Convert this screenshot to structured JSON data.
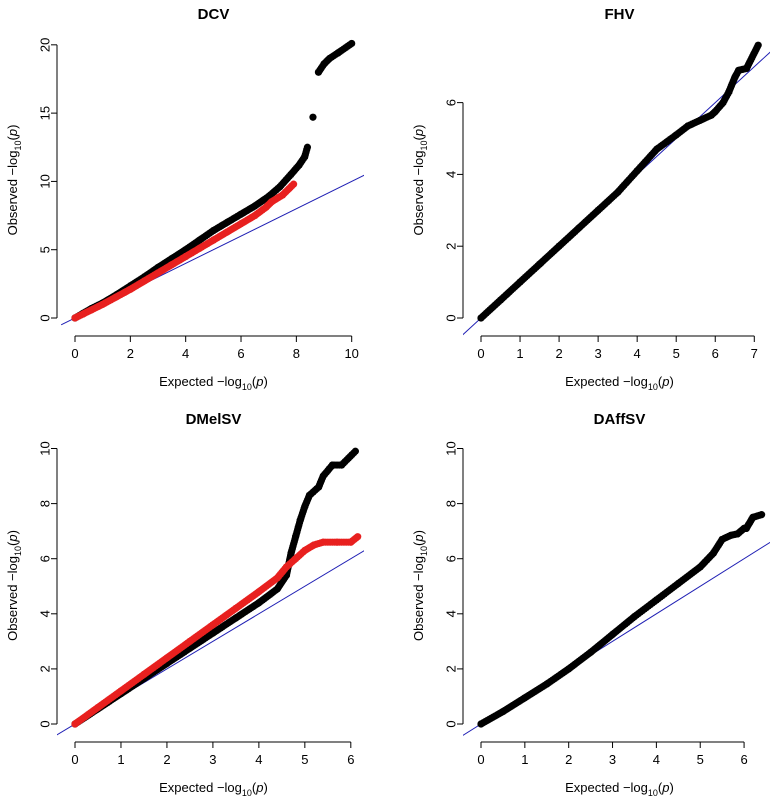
{
  "chart_data": [
    {
      "type": "scatter",
      "title": "DCV",
      "xlabel": "Expected  −log10(p)",
      "ylabel": "Observed  −log10(p)",
      "xlim": [
        0,
        10.3
      ],
      "ylim": [
        0,
        20.5
      ],
      "xticks": [
        0,
        2,
        4,
        6,
        8,
        10
      ],
      "yticks": [
        0,
        5,
        10,
        15,
        20
      ],
      "reference_line": {
        "slope": 1,
        "intercept": 0,
        "color": "#1f1fb4"
      },
      "series": [
        {
          "color": "#000000",
          "points": [
            [
              0,
              0
            ],
            [
              0.3,
              0.35
            ],
            [
              0.6,
              0.7
            ],
            [
              1,
              1.1
            ],
            [
              1.5,
              1.7
            ],
            [
              2,
              2.35
            ],
            [
              2.5,
              3.0
            ],
            [
              3,
              3.7
            ],
            [
              3.5,
              4.35
            ],
            [
              4,
              5.0
            ],
            [
              4.5,
              5.7
            ],
            [
              5,
              6.4
            ],
            [
              5.5,
              7.0
            ],
            [
              6,
              7.6
            ],
            [
              6.5,
              8.2
            ],
            [
              7,
              8.9
            ],
            [
              7.4,
              9.6
            ],
            [
              7.8,
              10.5
            ],
            [
              8.1,
              11.2
            ],
            [
              8.3,
              11.8
            ],
            [
              8.4,
              12.5
            ],
            [
              8.6,
              14.7
            ],
            [
              8.8,
              18.0
            ],
            [
              9.0,
              18.6
            ],
            [
              9.2,
              19.0
            ],
            [
              9.5,
              19.4
            ],
            [
              10,
              20.1
            ]
          ]
        },
        {
          "color": "#e8201f",
          "points": [
            [
              0,
              0
            ],
            [
              0.3,
              0.3
            ],
            [
              0.6,
              0.6
            ],
            [
              1,
              1.0
            ],
            [
              1.5,
              1.55
            ],
            [
              2,
              2.1
            ],
            [
              2.5,
              2.7
            ],
            [
              3,
              3.3
            ],
            [
              3.5,
              3.9
            ],
            [
              4,
              4.5
            ],
            [
              4.5,
              5.1
            ],
            [
              5,
              5.7
            ],
            [
              5.5,
              6.3
            ],
            [
              6,
              6.9
            ],
            [
              6.5,
              7.5
            ],
            [
              6.9,
              8.1
            ],
            [
              7.1,
              8.5
            ],
            [
              7.5,
              9.0
            ],
            [
              7.9,
              9.8
            ]
          ]
        }
      ]
    },
    {
      "type": "scatter",
      "title": "FHV",
      "xlabel": "Expected  −log10(p)",
      "ylabel": "Observed  −log10(p)",
      "xlim": [
        0,
        7.3
      ],
      "ylim": [
        0,
        7.8
      ],
      "xticks": [
        0,
        1,
        2,
        3,
        4,
        5,
        6,
        7
      ],
      "yticks": [
        0,
        2,
        4,
        6
      ],
      "reference_line": {
        "slope": 1,
        "intercept": 0,
        "color": "#1f1fb4"
      },
      "series": [
        {
          "color": "#000000",
          "points": [
            [
              0,
              0
            ],
            [
              0.5,
              0.5
            ],
            [
              1,
              1.0
            ],
            [
              1.5,
              1.5
            ],
            [
              2,
              2.0
            ],
            [
              2.5,
              2.5
            ],
            [
              3,
              3.0
            ],
            [
              3.5,
              3.5
            ],
            [
              4,
              4.1
            ],
            [
              4.5,
              4.7
            ],
            [
              5,
              5.1
            ],
            [
              5.3,
              5.35
            ],
            [
              5.6,
              5.5
            ],
            [
              5.9,
              5.65
            ],
            [
              6.0,
              5.75
            ],
            [
              6.2,
              6.0
            ],
            [
              6.35,
              6.3
            ],
            [
              6.5,
              6.7
            ],
            [
              6.6,
              6.9
            ],
            [
              6.8,
              6.95
            ],
            [
              7.1,
              7.6
            ]
          ]
        }
      ]
    },
    {
      "type": "scatter",
      "title": "DMelSV",
      "xlabel": "Expected  −log10(p)",
      "ylabel": "Observed  −log10(p)",
      "xlim": [
        0,
        6.2
      ],
      "ylim": [
        0,
        10.2
      ],
      "xticks": [
        0,
        1,
        2,
        3,
        4,
        5,
        6
      ],
      "yticks": [
        0,
        2,
        4,
        6,
        8,
        10
      ],
      "reference_line": {
        "slope": 1,
        "intercept": 0,
        "color": "#1f1fb4"
      },
      "series": [
        {
          "color": "#000000",
          "points": [
            [
              0,
              0
            ],
            [
              0.5,
              0.55
            ],
            [
              1,
              1.1
            ],
            [
              1.5,
              1.65
            ],
            [
              2,
              2.2
            ],
            [
              2.5,
              2.75
            ],
            [
              3,
              3.3
            ],
            [
              3.5,
              3.85
            ],
            [
              4,
              4.4
            ],
            [
              4.4,
              4.9
            ],
            [
              4.6,
              5.4
            ],
            [
              4.7,
              6.2
            ],
            [
              4.8,
              6.8
            ],
            [
              4.9,
              7.4
            ],
            [
              5.0,
              7.9
            ],
            [
              5.1,
              8.3
            ],
            [
              5.3,
              8.6
            ],
            [
              5.4,
              9.0
            ],
            [
              5.6,
              9.4
            ],
            [
              5.8,
              9.4
            ],
            [
              6.1,
              9.9
            ]
          ]
        },
        {
          "color": "#e8201f",
          "points": [
            [
              0,
              0
            ],
            [
              0.5,
              0.6
            ],
            [
              1,
              1.2
            ],
            [
              1.5,
              1.8
            ],
            [
              2,
              2.4
            ],
            [
              2.5,
              3.0
            ],
            [
              3,
              3.6
            ],
            [
              3.5,
              4.2
            ],
            [
              4,
              4.8
            ],
            [
              4.4,
              5.3
            ],
            [
              4.6,
              5.7
            ],
            [
              4.8,
              6.0
            ],
            [
              5.0,
              6.3
            ],
            [
              5.2,
              6.5
            ],
            [
              5.4,
              6.6
            ],
            [
              5.7,
              6.6
            ],
            [
              6.0,
              6.6
            ],
            [
              6.15,
              6.8
            ]
          ]
        }
      ]
    },
    {
      "type": "scatter",
      "title": "DAffSV",
      "xlabel": "Expected  −log10(p)",
      "ylabel": "Observed  −log10(p)",
      "xlim": [
        0,
        6.5
      ],
      "ylim": [
        0,
        10.2
      ],
      "xticks": [
        0,
        1,
        2,
        3,
        4,
        5,
        6
      ],
      "yticks": [
        0,
        2,
        4,
        6,
        8,
        10
      ],
      "reference_line": {
        "slope": 1,
        "intercept": 0,
        "color": "#1f1fb4"
      },
      "series": [
        {
          "color": "#000000",
          "points": [
            [
              0,
              0
            ],
            [
              0.5,
              0.45
            ],
            [
              1,
              0.95
            ],
            [
              1.5,
              1.45
            ],
            [
              2,
              2.0
            ],
            [
              2.5,
              2.6
            ],
            [
              3,
              3.25
            ],
            [
              3.5,
              3.9
            ],
            [
              4,
              4.5
            ],
            [
              4.5,
              5.1
            ],
            [
              5,
              5.7
            ],
            [
              5.3,
              6.2
            ],
            [
              5.5,
              6.7
            ],
            [
              5.7,
              6.85
            ],
            [
              5.85,
              6.9
            ],
            [
              6.0,
              7.1
            ],
            [
              6.05,
              7.1
            ],
            [
              6.2,
              7.5
            ],
            [
              6.4,
              7.6
            ]
          ]
        }
      ]
    }
  ]
}
